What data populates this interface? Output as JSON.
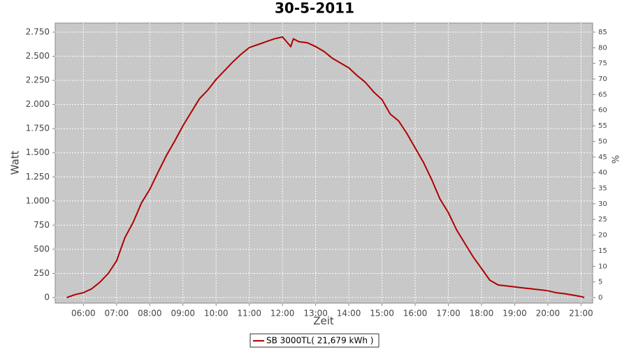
{
  "chart_data": {
    "type": "line",
    "title": "30-5-2011",
    "x_label": "Zeit",
    "y_label": "Watt",
    "y2_label": "%",
    "x": [
      5.5,
      5.75,
      6,
      6.25,
      6.5,
      6.75,
      7,
      7.25,
      7.5,
      7.75,
      8,
      8.25,
      8.5,
      8.75,
      9,
      9.25,
      9.5,
      9.75,
      10,
      10.25,
      10.5,
      10.75,
      11,
      11.25,
      11.5,
      11.75,
      12,
      12.25,
      12.33,
      12.5,
      12.75,
      13,
      13.25,
      13.5,
      13.75,
      14,
      14.25,
      14.5,
      14.75,
      15,
      15.25,
      15.5,
      15.75,
      16,
      16.25,
      16.5,
      16.75,
      17,
      17.25,
      17.5,
      17.75,
      18,
      18.25,
      18.5,
      18.75,
      19,
      19.25,
      19.5,
      19.75,
      20,
      20.25,
      20.5,
      20.75,
      21,
      21.1
    ],
    "series": [
      {
        "name": "SB 3000TL( 21,679 kWh )",
        "color": "#b00000",
        "values": [
          0,
          30,
          50,
          90,
          160,
          250,
          380,
          620,
          780,
          980,
          1120,
          1300,
          1470,
          1620,
          1780,
          1920,
          2060,
          2150,
          2260,
          2350,
          2440,
          2520,
          2590,
          2620,
          2650,
          2680,
          2700,
          2600,
          2680,
          2650,
          2640,
          2600,
          2550,
          2480,
          2430,
          2380,
          2300,
          2230,
          2130,
          2050,
          1900,
          1830,
          1700,
          1550,
          1400,
          1220,
          1020,
          880,
          700,
          560,
          420,
          300,
          180,
          130,
          120,
          110,
          100,
          90,
          80,
          70,
          50,
          40,
          25,
          10,
          0
        ]
      }
    ],
    "xlim": [
      5.15,
      21.35
    ],
    "xticks": [
      {
        "value": 6,
        "label": "06:00"
      },
      {
        "value": 7,
        "label": "07:00"
      },
      {
        "value": 8,
        "label": "08:00"
      },
      {
        "value": 9,
        "label": "09:00"
      },
      {
        "value": 10,
        "label": "10:00"
      },
      {
        "value": 11,
        "label": "11:00"
      },
      {
        "value": 12,
        "label": "12:00"
      },
      {
        "value": 13,
        "label": "13:00"
      },
      {
        "value": 14,
        "label": "14:00"
      },
      {
        "value": 15,
        "label": "15:00"
      },
      {
        "value": 16,
        "label": "16:00"
      },
      {
        "value": 17,
        "label": "17:00"
      },
      {
        "value": 18,
        "label": "18:00"
      },
      {
        "value": 19,
        "label": "19:00"
      },
      {
        "value": 20,
        "label": "20:00"
      },
      {
        "value": 21,
        "label": "21:00"
      }
    ],
    "ylim": [
      -58,
      2844
    ],
    "yticks": [
      0,
      250,
      500,
      750,
      {
        "value": 1000,
        "label": "1.000"
      },
      {
        "value": 1250,
        "label": "1.250"
      },
      {
        "value": 1500,
        "label": "1.500"
      },
      {
        "value": 1750,
        "label": "1.750"
      },
      {
        "value": 2000,
        "label": "2.000"
      },
      {
        "value": 2250,
        "label": "2.250"
      },
      {
        "value": 2500,
        "label": "2.500"
      },
      {
        "value": 2750,
        "label": "2.750"
      }
    ],
    "y2lim": [
      -1.79,
      87.9
    ],
    "y2ticks": [
      0,
      5,
      10,
      15,
      20,
      25,
      30,
      35,
      40,
      45,
      50,
      55,
      60,
      65,
      70,
      75,
      80,
      85
    ],
    "grid": true,
    "legend": "bottom"
  }
}
